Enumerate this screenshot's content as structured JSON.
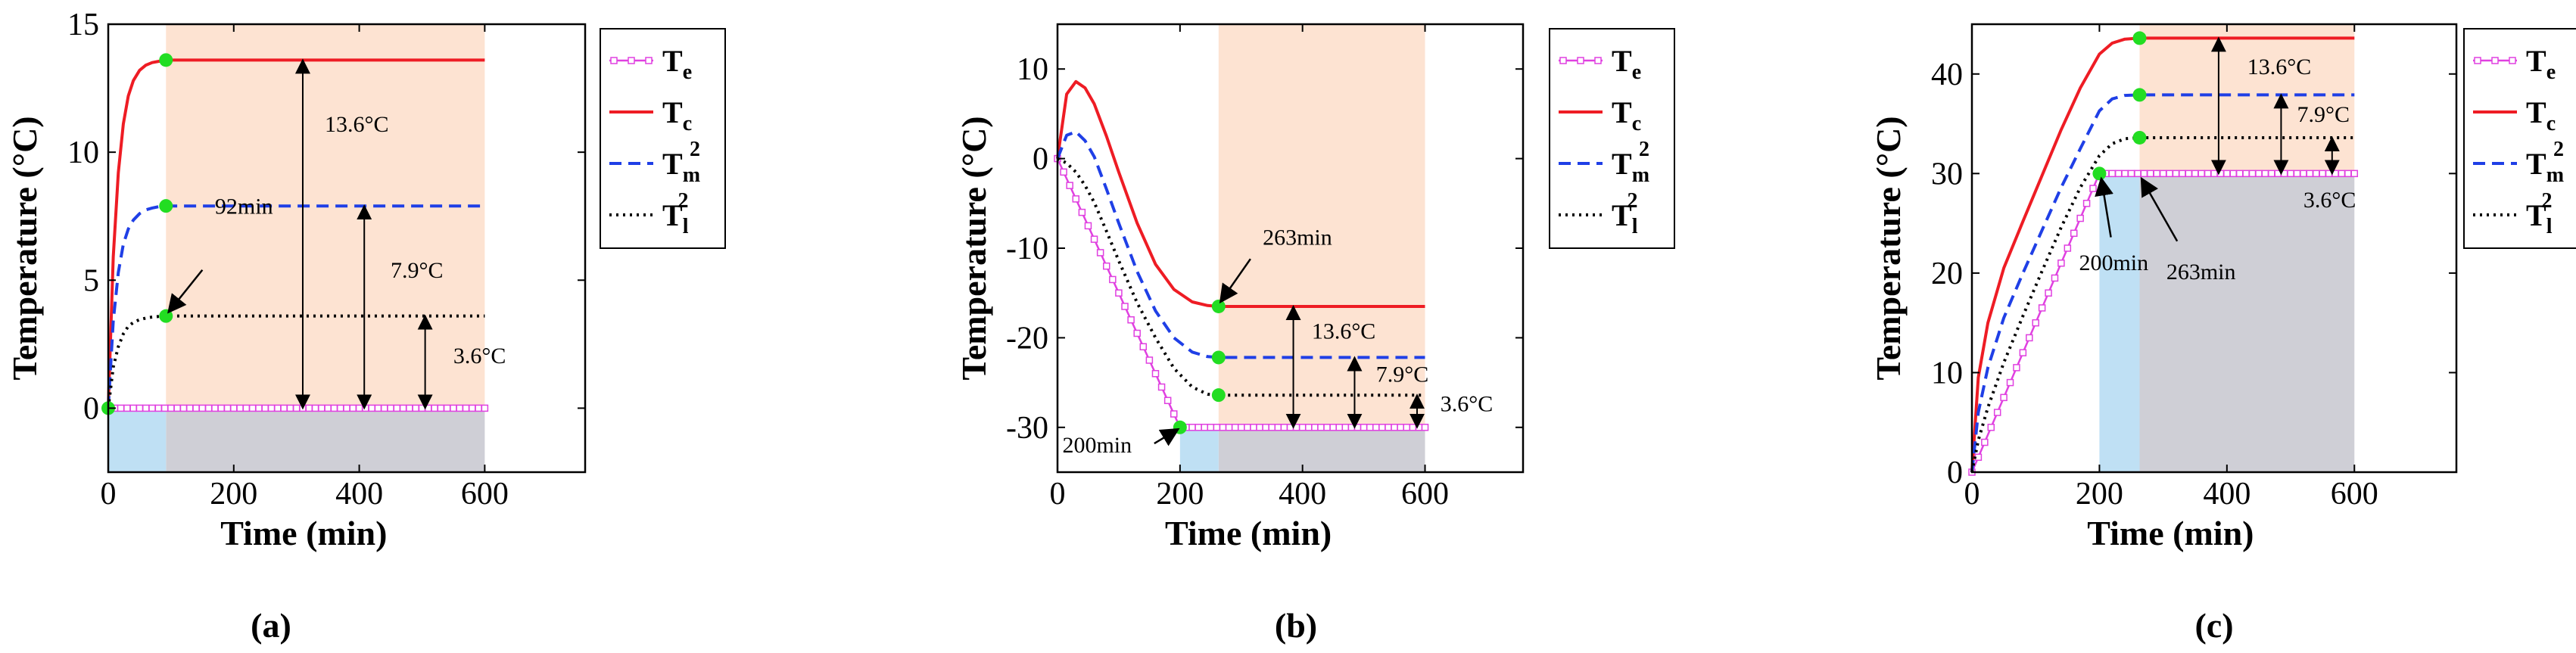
{
  "figure": {
    "panel_labels": [
      "(a)",
      "(b)",
      "(c)"
    ]
  },
  "colors": {
    "Te": "#e040e0",
    "Tc": "#ee1c24",
    "Tm": "#1f3fe6",
    "Tl": "#000000",
    "marker": "#22dd22",
    "stage1_shade": "#bfe0f4",
    "stage2_shade": "#fde3d2",
    "stage2_lower_shade": "#cfcfd6"
  },
  "legend": {
    "entries": [
      {
        "key": "Te",
        "base": "T",
        "sub": "e",
        "sup": "",
        "style": "square"
      },
      {
        "key": "Tc",
        "base": "T",
        "sub": "c",
        "sup": "",
        "style": "solid"
      },
      {
        "key": "Tm",
        "base": "T",
        "sub": "m",
        "sup": "2",
        "style": "dashed"
      },
      {
        "key": "Tl",
        "base": "T",
        "sub": "l",
        "sup": "2",
        "style": "dotted"
      }
    ]
  },
  "chart_data": [
    {
      "type": "line",
      "panel": "(a)",
      "xlabel": "Time (min)",
      "ylabel": "Temperature (°C)",
      "xlim": [
        0,
        760
      ],
      "ylim": [
        -2.5,
        15
      ],
      "xticks": [
        0,
        200,
        400,
        600
      ],
      "yticks": [
        0,
        5,
        10,
        15
      ],
      "stage1_range": [
        0,
        92
      ],
      "stage2_range": [
        92,
        600
      ],
      "lower_band": [
        -2.5,
        0
      ],
      "series": [
        {
          "key": "Te",
          "name": "Te",
          "x": [
            0,
            92,
            600
          ],
          "y": [
            0,
            0,
            0
          ]
        },
        {
          "key": "Tc",
          "name": "Tc",
          "x": [
            0,
            8,
            16,
            24,
            32,
            40,
            50,
            60,
            70,
            80,
            92,
            600
          ],
          "y": [
            0,
            5.9,
            9.2,
            11.1,
            12.2,
            12.8,
            13.2,
            13.4,
            13.5,
            13.55,
            13.6,
            13.6
          ]
        },
        {
          "key": "Tm",
          "name": "Tm2",
          "x": [
            0,
            8,
            16,
            24,
            32,
            40,
            50,
            60,
            70,
            80,
            92,
            600
          ],
          "y": [
            0,
            3.4,
            5.3,
            6.4,
            7.0,
            7.35,
            7.6,
            7.75,
            7.82,
            7.87,
            7.9,
            7.9
          ]
        },
        {
          "key": "Tl",
          "name": "Tl2",
          "x": [
            0,
            8,
            16,
            24,
            32,
            40,
            50,
            60,
            70,
            80,
            92,
            600
          ],
          "y": [
            0,
            1.6,
            2.4,
            2.9,
            3.2,
            3.35,
            3.46,
            3.52,
            3.56,
            3.58,
            3.6,
            3.6
          ]
        }
      ],
      "markers": [
        [
          0,
          0
        ],
        [
          92,
          13.6
        ],
        [
          92,
          7.9
        ],
        [
          92,
          3.6
        ]
      ],
      "dimension_arrows": [
        {
          "x": 310,
          "y1": 0,
          "y2": 13.6,
          "label": "13.6°C",
          "lx": 345,
          "ly": 10.8
        },
        {
          "x": 408,
          "y1": 0,
          "y2": 7.9,
          "label": "7.9°C",
          "lx": 450,
          "ly": 5.1
        },
        {
          "x": 505,
          "y1": 0,
          "y2": 3.6,
          "label": "3.6°C",
          "lx": 550,
          "ly": 1.75
        }
      ],
      "pointer_arrows": [
        {
          "from": [
            150,
            5.4
          ],
          "to": [
            96,
            3.75
          ],
          "label": "92min",
          "lx": 170,
          "ly": 7.6
        }
      ]
    },
    {
      "type": "line",
      "panel": "(b)",
      "xlabel": "Time (min)",
      "ylabel": "Temperature (°C)",
      "xlim": [
        0,
        760
      ],
      "ylim": [
        -35,
        15
      ],
      "xticks": [
        0,
        200,
        400,
        600
      ],
      "yticks": [
        -30,
        -20,
        -10,
        0,
        10
      ],
      "stage1_range": [
        200,
        263
      ],
      "stage2_range": [
        263,
        600
      ],
      "lower_band": [
        -35,
        -30
      ],
      "series": [
        {
          "key": "Te",
          "name": "Te",
          "x": [
            0,
            200,
            600
          ],
          "y": [
            0,
            -30,
            -30
          ]
        },
        {
          "key": "Tc",
          "name": "Tc",
          "x": [
            0,
            15,
            30,
            45,
            60,
            80,
            100,
            130,
            160,
            190,
            220,
            245,
            263,
            600
          ],
          "y": [
            0,
            7.2,
            8.6,
            7.9,
            6.1,
            2.5,
            -1.5,
            -7.2,
            -11.8,
            -14.6,
            -16.0,
            -16.4,
            -16.5,
            -16.5
          ]
        },
        {
          "key": "Tm",
          "name": "Tm2",
          "x": [
            0,
            15,
            30,
            45,
            60,
            80,
            100,
            130,
            160,
            190,
            220,
            245,
            263,
            600
          ],
          "y": [
            0,
            2.6,
            3.0,
            2.0,
            0.2,
            -3.4,
            -7.2,
            -12.6,
            -17.0,
            -20.0,
            -21.6,
            -22.1,
            -22.2,
            -22.2
          ]
        },
        {
          "key": "Tl",
          "name": "Tl2",
          "x": [
            0,
            15,
            30,
            45,
            60,
            80,
            100,
            130,
            160,
            190,
            220,
            245,
            263,
            600
          ],
          "y": [
            0,
            -0.5,
            -1.5,
            -3.0,
            -4.9,
            -8.1,
            -11.4,
            -16.1,
            -20.0,
            -23.4,
            -25.5,
            -26.3,
            -26.4,
            -26.4
          ]
        }
      ],
      "markers": [
        [
          200,
          -30
        ],
        [
          263,
          -16.5
        ],
        [
          263,
          -22.2
        ],
        [
          263,
          -26.4
        ]
      ],
      "dimension_arrows": [
        {
          "x": 385,
          "y1": -30,
          "y2": -16.5,
          "label": "13.6°C",
          "lx": 415,
          "ly": -20.1
        },
        {
          "x": 485,
          "y1": -30,
          "y2": -22.2,
          "label": "7.9°C",
          "lx": 520,
          "ly": -24.9
        },
        {
          "x": 587,
          "y1": -30,
          "y2": -26.4,
          "label": "3.6°C",
          "lx": 625,
          "ly": -28.2
        }
      ],
      "pointer_arrows": [
        {
          "from": [
            315,
            -11.2
          ],
          "to": [
            266,
            -16.0
          ],
          "label": "263min",
          "lx": 335,
          "ly": -9.6
        },
        {
          "from": [
            158,
            -31.8
          ],
          "to": [
            197,
            -30.2
          ],
          "label": "200min",
          "lx": 8,
          "ly": -32.8
        }
      ]
    },
    {
      "type": "line",
      "panel": "(c)",
      "xlabel": "Time (min)",
      "ylabel": "Temperature (°C)",
      "xlim": [
        0,
        760
      ],
      "ylim": [
        0,
        45
      ],
      "xticks": [
        0,
        200,
        400,
        600
      ],
      "yticks": [
        0,
        10,
        20,
        30,
        40
      ],
      "stage1_range": [
        200,
        263
      ],
      "stage2_range": [
        263,
        600
      ],
      "lower_band": [
        0,
        30
      ],
      "series": [
        {
          "key": "Te",
          "name": "Te",
          "x": [
            0,
            200,
            600
          ],
          "y": [
            0,
            30,
            30
          ]
        },
        {
          "key": "Tc",
          "name": "Tc",
          "x": [
            0,
            10,
            25,
            50,
            80,
            110,
            140,
            170,
            200,
            220,
            240,
            263,
            600
          ],
          "y": [
            0,
            9.5,
            15.0,
            20.5,
            25.2,
            29.8,
            34.4,
            38.6,
            42.0,
            43.1,
            43.5,
            43.6,
            43.6
          ]
        },
        {
          "key": "Tm",
          "name": "Tm2",
          "x": [
            0,
            10,
            25,
            50,
            80,
            110,
            140,
            170,
            200,
            220,
            240,
            263,
            600
          ],
          "y": [
            0,
            6.0,
            10.5,
            15.5,
            20.0,
            24.3,
            28.6,
            32.5,
            36.3,
            37.5,
            37.85,
            37.9,
            37.9
          ]
        },
        {
          "key": "Tl",
          "name": "Tl2",
          "x": [
            0,
            10,
            25,
            50,
            80,
            110,
            140,
            170,
            200,
            220,
            240,
            263,
            600
          ],
          "y": [
            0,
            3.2,
            6.5,
            11.0,
            15.7,
            20.2,
            24.6,
            28.6,
            31.8,
            33.0,
            33.5,
            33.6,
            33.6
          ]
        }
      ],
      "markers": [
        [
          200,
          30
        ],
        [
          263,
          43.6
        ],
        [
          263,
          37.9
        ],
        [
          263,
          33.6
        ]
      ],
      "dimension_arrows": [
        {
          "x": 387,
          "y1": 30,
          "y2": 43.6,
          "label": "13.6°C",
          "lx": 432,
          "ly": 40.0
        },
        {
          "x": 485,
          "y1": 30,
          "y2": 37.9,
          "label": "7.9°C",
          "lx": 510,
          "ly": 35.2
        },
        {
          "x": 565,
          "y1": 30,
          "y2": 33.6,
          "label": "3.6°C",
          "lx": 520,
          "ly": 26.6
        }
      ],
      "pointer_arrows": [
        {
          "from": [
            218,
            23.6
          ],
          "to": [
            203,
            29.5
          ],
          "label": "200min",
          "lx": 168,
          "ly": 20.3
        },
        {
          "from": [
            322,
            23.2
          ],
          "to": [
            266,
            29.5
          ],
          "label": "263min",
          "lx": 305,
          "ly": 19.4
        }
      ]
    }
  ]
}
